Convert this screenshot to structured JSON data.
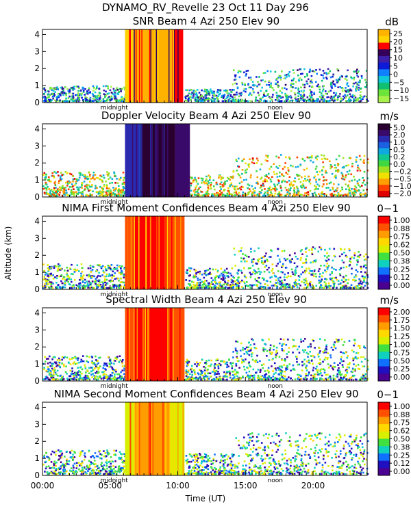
{
  "figure": {
    "title": "DYNAMO_RV_Revelle  23 Oct 11 Day 296",
    "ylabel": "Altitude (km)",
    "xlabel": "Time (UT)",
    "x_ticks": [
      "00:00",
      "05:00",
      "10:00",
      "15:00",
      "20:00"
    ],
    "x_markers": [
      "midnight",
      "noon"
    ]
  },
  "chart_data": [
    {
      "type": "heatmap",
      "title": "SNR Beam 4 Azi 250 Elev 90",
      "units": "dB",
      "y_ticks": [
        "0",
        "1",
        "2",
        "3",
        "4"
      ],
      "xlim": [
        0,
        24
      ],
      "ylim": [
        0,
        4.3
      ],
      "colorbar_labels": [
        "25",
        "20",
        "15",
        "10",
        "5",
        "0",
        "−5",
        "−10",
        "−15"
      ],
      "colorbar_colors": [
        "#ffb300",
        "#ffd200",
        "#ff0000",
        "#35005a",
        "#3d1faa",
        "#0d1ad6",
        "#1080ff",
        "#10c8d8",
        "#10c070",
        "#6ce43a",
        "#a8f04a"
      ],
      "clutter_segments": [
        {
          "start": 6.1,
          "end": 6.7,
          "top": 4.3,
          "level": "high"
        },
        {
          "start": 6.7,
          "end": 9.6,
          "top": 4.3,
          "level": "max"
        },
        {
          "start": 9.6,
          "end": 10.4,
          "top": 4.3,
          "level": "mid"
        }
      ]
    },
    {
      "type": "heatmap",
      "title": "Doppler Velocity Beam 4 Azi 250 Elev 90",
      "units": "m/s",
      "y_ticks": [
        "0",
        "1",
        "2",
        "3",
        "4"
      ],
      "xlim": [
        0,
        24
      ],
      "ylim": [
        0,
        4.3
      ],
      "colorbar_labels": [
        "5.0",
        "2.0",
        "1.0",
        "0.5",
        "0.2",
        "0.0",
        "−0.2",
        "−0.5",
        "−1.0",
        "−2.0"
      ],
      "colorbar_colors": [
        "#2a0030",
        "#3a0a6a",
        "#2a2ab0",
        "#1a60e0",
        "#10a8e0",
        "#10c890",
        "#40d840",
        "#a0e020",
        "#f0e000",
        "#ffa000",
        "#ff4000",
        "#e00000"
      ],
      "clutter_segments": [
        {
          "start": 6.1,
          "end": 7.2,
          "top": 4.3,
          "level": "mid"
        },
        {
          "start": 7.2,
          "end": 9.8,
          "top": 4.3,
          "level": "max"
        },
        {
          "start": 9.8,
          "end": 10.9,
          "top": 4.3,
          "level": "high"
        }
      ]
    },
    {
      "type": "heatmap",
      "title": "NIMA First Moment Confidences Beam 4 Azi 250 Elev 90",
      "units": "0−1",
      "y_ticks": [
        "0",
        "1",
        "2",
        "3",
        "4"
      ],
      "xlim": [
        0,
        24
      ],
      "ylim": [
        0,
        4.3
      ],
      "colorbar_labels": [
        "1.00",
        "0.88",
        "0.75",
        "0.62",
        "0.50",
        "0.38",
        "0.25",
        "0.12",
        "0.00"
      ],
      "colorbar_colors": [
        "#ff0000",
        "#ff5000",
        "#ff9c00",
        "#ffd800",
        "#d8f000",
        "#40e040",
        "#10d0c0",
        "#1070ff",
        "#2010c0",
        "#4a0090"
      ],
      "clutter_segments": [
        {
          "start": 6.1,
          "end": 6.7,
          "top": 4.3,
          "level": "high"
        },
        {
          "start": 6.7,
          "end": 9.2,
          "top": 4.3,
          "level": "max"
        },
        {
          "start": 9.2,
          "end": 10.5,
          "top": 4.3,
          "level": "high"
        }
      ]
    },
    {
      "type": "heatmap",
      "title": "Spectral Width Beam 4 Azi 250 Elev 90",
      "units": "m/s",
      "y_ticks": [
        "0",
        "1",
        "2",
        "3",
        "4"
      ],
      "xlim": [
        0,
        24
      ],
      "ylim": [
        0,
        4.3
      ],
      "colorbar_labels": [
        "2.00",
        "1.75",
        "1.50",
        "1.25",
        "1.00",
        "0.75",
        "0.50",
        "0.25",
        "0.00"
      ],
      "colorbar_colors": [
        "#ff0000",
        "#ff5000",
        "#ff9c00",
        "#ffd800",
        "#d8f000",
        "#40e040",
        "#10d0c0",
        "#1070ff",
        "#2010c0",
        "#4a0090"
      ],
      "clutter_segments": [
        {
          "start": 6.1,
          "end": 6.7,
          "top": 4.3,
          "level": "high"
        },
        {
          "start": 6.7,
          "end": 9.6,
          "top": 4.3,
          "level": "max"
        },
        {
          "start": 9.6,
          "end": 10.5,
          "top": 4.3,
          "level": "high"
        }
      ]
    },
    {
      "type": "heatmap",
      "title": "NIMA Second Moment Confidences Beam 4 Azi 250 Elev 90",
      "units": "0−1",
      "y_ticks": [
        "0",
        "1",
        "2",
        "3",
        "4"
      ],
      "xlim": [
        0,
        24
      ],
      "ylim": [
        0,
        4.3
      ],
      "colorbar_labels": [
        "1.00",
        "0.88",
        "0.75",
        "0.62",
        "0.50",
        "0.38",
        "0.25",
        "0.12",
        "0.00"
      ],
      "colorbar_colors": [
        "#ff0000",
        "#ff5000",
        "#ff9c00",
        "#ffd800",
        "#d8f000",
        "#40e040",
        "#10d0c0",
        "#1070ff",
        "#2010c0",
        "#4a0090"
      ],
      "clutter_segments": [
        {
          "start": 6.1,
          "end": 6.8,
          "top": 4.3,
          "level": "low"
        },
        {
          "start": 6.8,
          "end": 9.4,
          "top": 4.3,
          "level": "mid"
        },
        {
          "start": 9.4,
          "end": 10.5,
          "top": 4.3,
          "level": "low"
        }
      ]
    }
  ]
}
